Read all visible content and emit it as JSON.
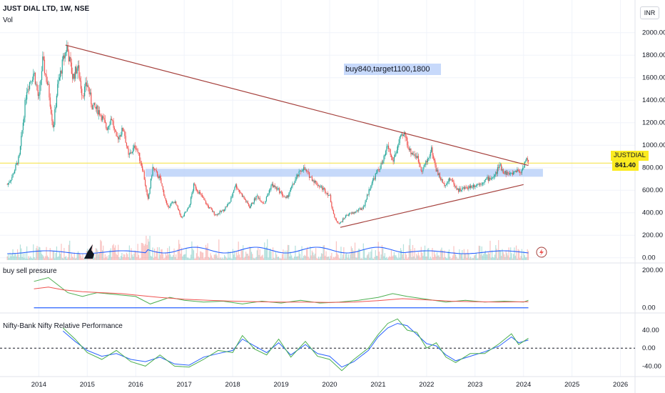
{
  "header": {
    "symbol_title": "JUST DIAL LTD, 1W, NSE",
    "volume_label": "Vol",
    "currency": "INR"
  },
  "price_tag": {
    "symbol": "JUSTDIAL",
    "value": "841.40"
  },
  "annotation": {
    "text": "buy840,target1100,1800"
  },
  "panes": {
    "pressure_label": "buy sell pressure",
    "relative_label": "Nifty-Bank Nifty Relative Performance"
  },
  "colors": {
    "up": "#26a69a",
    "down": "#ef5350",
    "trendline": "#a5403c",
    "zone": "#bcd2f9",
    "volume_ma": "#2962ff",
    "price_line": "#f5e13a",
    "pressure_buy": "#4caf50",
    "pressure_sell": "#ef5350",
    "relative_fast": "#2962ff",
    "relative_slow": "#4caf50"
  },
  "chart_data": [
    {
      "type": "candlestick",
      "name": "price",
      "x_axis": {
        "ticks": [
          "2014",
          "2015",
          "2016",
          "2017",
          "2018",
          "2019",
          "2020",
          "2021",
          "2022",
          "2023",
          "2024",
          "2025",
          "2026"
        ]
      },
      "y_axis": {
        "ticks": [
          "0.00",
          "200.00",
          "400.00",
          "600.00",
          "800.00",
          "1000.00",
          "1200.00",
          "1400.00",
          "1600.00",
          "1800.00",
          "2000.00"
        ],
        "range": [
          0,
          2000
        ]
      },
      "x_range": [
        2013.2,
        2026.3
      ],
      "path": [
        [
          2013.35,
          650
        ],
        [
          2013.45,
          720
        ],
        [
          2013.6,
          900
        ],
        [
          2013.75,
          1500
        ],
        [
          2013.9,
          1650
        ],
        [
          2014.0,
          1400
        ],
        [
          2014.08,
          1750
        ],
        [
          2014.2,
          1500
        ],
        [
          2014.3,
          1150
        ],
        [
          2014.38,
          1500
        ],
        [
          2014.5,
          1750
        ],
        [
          2014.58,
          1880
        ],
        [
          2014.7,
          1600
        ],
        [
          2014.8,
          1700
        ],
        [
          2014.9,
          1450
        ],
        [
          2015.0,
          1550
        ],
        [
          2015.1,
          1350
        ],
        [
          2015.25,
          1300
        ],
        [
          2015.4,
          1150
        ],
        [
          2015.5,
          1250
        ],
        [
          2015.6,
          1050
        ],
        [
          2015.75,
          1150
        ],
        [
          2015.85,
          900
        ],
        [
          2016.0,
          1000
        ],
        [
          2016.15,
          780
        ],
        [
          2016.25,
          500
        ],
        [
          2016.35,
          800
        ],
        [
          2016.5,
          700
        ],
        [
          2016.65,
          450
        ],
        [
          2016.8,
          500
        ],
        [
          2016.95,
          350
        ],
        [
          2017.1,
          450
        ],
        [
          2017.2,
          650
        ],
        [
          2017.35,
          550
        ],
        [
          2017.5,
          450
        ],
        [
          2017.65,
          380
        ],
        [
          2017.8,
          420
        ],
        [
          2017.95,
          500
        ],
        [
          2018.05,
          650
        ],
        [
          2018.2,
          550
        ],
        [
          2018.35,
          450
        ],
        [
          2018.5,
          550
        ],
        [
          2018.65,
          480
        ],
        [
          2018.8,
          650
        ],
        [
          2018.95,
          600
        ],
        [
          2019.1,
          520
        ],
        [
          2019.3,
          700
        ],
        [
          2019.45,
          800
        ],
        [
          2019.6,
          720
        ],
        [
          2019.75,
          650
        ],
        [
          2019.9,
          600
        ],
        [
          2020.0,
          550
        ],
        [
          2020.1,
          350
        ],
        [
          2020.2,
          300
        ],
        [
          2020.35,
          380
        ],
        [
          2020.5,
          400
        ],
        [
          2020.7,
          450
        ],
        [
          2020.85,
          650
        ],
        [
          2021.0,
          780
        ],
        [
          2021.1,
          850
        ],
        [
          2021.2,
          1000
        ],
        [
          2021.3,
          850
        ],
        [
          2021.45,
          1050
        ],
        [
          2021.55,
          1100
        ],
        [
          2021.65,
          950
        ],
        [
          2021.8,
          900
        ],
        [
          2021.9,
          780
        ],
        [
          2022.0,
          850
        ],
        [
          2022.1,
          960
        ],
        [
          2022.2,
          780
        ],
        [
          2022.35,
          650
        ],
        [
          2022.5,
          700
        ],
        [
          2022.65,
          600
        ],
        [
          2022.8,
          620
        ],
        [
          2022.95,
          640
        ],
        [
          2023.1,
          660
        ],
        [
          2023.25,
          700
        ],
        [
          2023.4,
          720
        ],
        [
          2023.5,
          820
        ],
        [
          2023.6,
          760
        ],
        [
          2023.75,
          740
        ],
        [
          2023.85,
          780
        ],
        [
          2023.95,
          760
        ],
        [
          2024.0,
          820
        ],
        [
          2024.05,
          880
        ],
        [
          2024.1,
          841
        ]
      ],
      "trendlines": [
        {
          "from": [
            2014.55,
            1890
          ],
          "to": [
            2024.1,
            820
          ]
        },
        {
          "from": [
            2020.22,
            270
          ],
          "to": [
            2024.0,
            650
          ]
        }
      ],
      "zone": {
        "y_range": [
          720,
          790
        ],
        "x_range": [
          2016.2,
          2024.4
        ]
      },
      "last_price": 841.4
    },
    {
      "type": "line",
      "name": "buy sell pressure",
      "y_axis": {
        "ticks": [
          "0.00",
          "200.00"
        ],
        "range": [
          -20,
          230
        ]
      },
      "series": [
        {
          "values": [
            [
              2013.9,
              140
            ],
            [
              2014.2,
              160
            ],
            [
              2014.4,
              120
            ],
            [
              2014.6,
              80
            ],
            [
              2014.9,
              60
            ],
            [
              2015.2,
              80
            ],
            [
              2015.6,
              70
            ],
            [
              2016.0,
              60
            ],
            [
              2016.3,
              20
            ],
            [
              2016.7,
              55
            ],
            [
              2017.0,
              40
            ],
            [
              2017.4,
              30
            ],
            [
              2017.8,
              35
            ],
            [
              2018.2,
              20
            ],
            [
              2018.6,
              35
            ],
            [
              2019.0,
              25
            ],
            [
              2019.4,
              40
            ],
            [
              2019.8,
              25
            ],
            [
              2020.2,
              30
            ],
            [
              2020.6,
              40
            ],
            [
              2021.0,
              55
            ],
            [
              2021.3,
              75
            ],
            [
              2021.6,
              60
            ],
            [
              2022.0,
              45
            ],
            [
              2022.4,
              30
            ],
            [
              2022.8,
              40
            ],
            [
              2023.2,
              30
            ],
            [
              2023.6,
              35
            ],
            [
              2024.0,
              30
            ],
            [
              2024.1,
              40
            ]
          ]
        },
        {
          "values": [
            [
              2013.9,
              100
            ],
            [
              2014.2,
              110
            ],
            [
              2014.5,
              95
            ],
            [
              2014.9,
              85
            ],
            [
              2015.3,
              80
            ],
            [
              2015.7,
              75
            ],
            [
              2016.1,
              65
            ],
            [
              2016.5,
              55
            ],
            [
              2017.0,
              45
            ],
            [
              2017.5,
              40
            ],
            [
              2018.0,
              35
            ],
            [
              2018.5,
              32
            ],
            [
              2019.0,
              30
            ],
            [
              2019.5,
              30
            ],
            [
              2020.0,
              28
            ],
            [
              2020.5,
              30
            ],
            [
              2021.0,
              38
            ],
            [
              2021.5,
              48
            ],
            [
              2022.0,
              42
            ],
            [
              2022.5,
              35
            ],
            [
              2023.0,
              32
            ],
            [
              2023.5,
              30
            ],
            [
              2024.1,
              32
            ]
          ]
        }
      ]
    },
    {
      "type": "line",
      "name": "Nifty-Bank Nifty Relative Performance",
      "y_axis": {
        "ticks": [
          "40.00",
          "0.00",
          "-40.00"
        ],
        "range": [
          -60,
          75
        ]
      },
      "series": [
        {
          "values": [
            [
              2014.5,
              38
            ],
            [
              2014.75,
              15
            ],
            [
              2015.0,
              -5
            ],
            [
              2015.3,
              -18
            ],
            [
              2015.6,
              -12
            ],
            [
              2015.9,
              -25
            ],
            [
              2016.2,
              -30
            ],
            [
              2016.5,
              -20
            ],
            [
              2016.8,
              -35
            ],
            [
              2017.1,
              -38
            ],
            [
              2017.4,
              -20
            ],
            [
              2017.7,
              -12
            ],
            [
              2018.0,
              -5
            ],
            [
              2018.2,
              20
            ],
            [
              2018.45,
              5
            ],
            [
              2018.7,
              -10
            ],
            [
              2018.95,
              12
            ],
            [
              2019.2,
              -15
            ],
            [
              2019.5,
              8
            ],
            [
              2019.75,
              -12
            ],
            [
              2020.0,
              -18
            ],
            [
              2020.25,
              -42
            ],
            [
              2020.5,
              -30
            ],
            [
              2020.8,
              -5
            ],
            [
              2021.0,
              25
            ],
            [
              2021.2,
              45
            ],
            [
              2021.4,
              55
            ],
            [
              2021.6,
              50
            ],
            [
              2021.8,
              30
            ],
            [
              2022.0,
              10
            ],
            [
              2022.2,
              5
            ],
            [
              2022.4,
              -15
            ],
            [
              2022.6,
              -28
            ],
            [
              2022.9,
              -18
            ],
            [
              2023.2,
              -8
            ],
            [
              2023.5,
              5
            ],
            [
              2023.75,
              25
            ],
            [
              2023.9,
              12
            ],
            [
              2024.1,
              18
            ]
          ]
        },
        {
          "values": [
            [
              2014.5,
              45
            ],
            [
              2014.75,
              20
            ],
            [
              2015.0,
              -10
            ],
            [
              2015.3,
              -25
            ],
            [
              2015.6,
              -5
            ],
            [
              2015.9,
              -30
            ],
            [
              2016.2,
              -40
            ],
            [
              2016.5,
              -15
            ],
            [
              2016.8,
              -40
            ],
            [
              2017.1,
              -42
            ],
            [
              2017.4,
              -25
            ],
            [
              2017.7,
              -5
            ],
            [
              2018.0,
              -10
            ],
            [
              2018.2,
              28
            ],
            [
              2018.45,
              -2
            ],
            [
              2018.7,
              -15
            ],
            [
              2018.95,
              20
            ],
            [
              2019.2,
              -20
            ],
            [
              2019.5,
              15
            ],
            [
              2019.75,
              -18
            ],
            [
              2020.0,
              -25
            ],
            [
              2020.25,
              -50
            ],
            [
              2020.5,
              -25
            ],
            [
              2020.8,
              0
            ],
            [
              2021.0,
              30
            ],
            [
              2021.2,
              55
            ],
            [
              2021.4,
              65
            ],
            [
              2021.6,
              40
            ],
            [
              2021.8,
              35
            ],
            [
              2022.0,
              0
            ],
            [
              2022.2,
              12
            ],
            [
              2022.4,
              -20
            ],
            [
              2022.6,
              -32
            ],
            [
              2022.9,
              -12
            ],
            [
              2023.2,
              -12
            ],
            [
              2023.5,
              10
            ],
            [
              2023.75,
              32
            ],
            [
              2023.9,
              8
            ],
            [
              2024.1,
              22
            ]
          ]
        }
      ]
    }
  ]
}
